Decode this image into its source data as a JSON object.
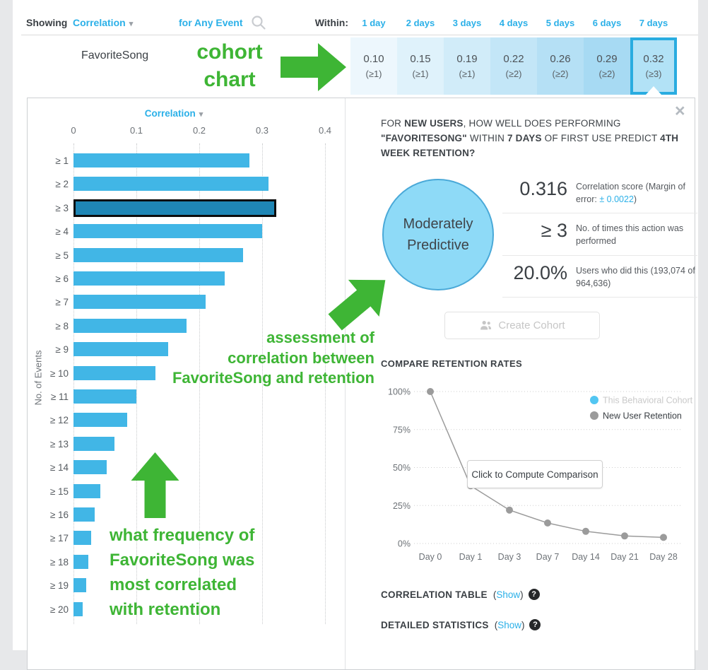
{
  "colors": {
    "accent_blue": "#2bb0e8",
    "bar_blue": "#41b6e6",
    "bar_highlight": "#1f86b5",
    "annotation_green": "#3eb535",
    "cohort_dot_blue": "#52c6f2",
    "retention_gray": "#9b9b9b",
    "selected_cell_border": "#29ace0",
    "bubble_fill": "#8edaf7",
    "bubble_border": "#4aa9d8",
    "cell_shades": [
      "#edf7fd",
      "#dff2fb",
      "#d1ecf9",
      "#c3e6f7",
      "#b5e0f5",
      "#a7daf3",
      "#b2e2f6"
    ]
  },
  "header": {
    "showing_label": "Showing",
    "showing_value": "Correlation",
    "caret": "▾",
    "for_event": "for Any Event",
    "within_label": "Within:",
    "day_columns": [
      "1 day",
      "2 days",
      "3 days",
      "4 days",
      "5 days",
      "6 days",
      "7 days"
    ]
  },
  "event_row": {
    "event_name": "FavoriteSong",
    "cells": [
      {
        "value": "0.10",
        "threshold": "(≥1)",
        "selected": false
      },
      {
        "value": "0.15",
        "threshold": "(≥1)",
        "selected": false
      },
      {
        "value": "0.19",
        "threshold": "(≥1)",
        "selected": false
      },
      {
        "value": "0.22",
        "threshold": "(≥2)",
        "selected": false
      },
      {
        "value": "0.26",
        "threshold": "(≥2)",
        "selected": false
      },
      {
        "value": "0.29",
        "threshold": "(≥2)",
        "selected": false
      },
      {
        "value": "0.32",
        "threshold": "(≥3)",
        "selected": true
      }
    ]
  },
  "annotations": {
    "cohort_chart": [
      "cohort",
      "chart"
    ],
    "assessment": [
      "assessment of",
      "correlation between",
      "FavoriteSong and retention"
    ],
    "frequency": [
      "what frequency of",
      "FavoriteSong was",
      "most correlated",
      "with retention"
    ]
  },
  "detail_panel": {
    "close_icon": "×",
    "question_segments": [
      {
        "text": "FOR ",
        "bold": false
      },
      {
        "text": "NEW USERS",
        "bold": true
      },
      {
        "text": ", HOW WELL DOES PERFORMING ",
        "bold": false
      },
      {
        "text": "\"FAVORITESONG\"",
        "bold": true
      },
      {
        "text": " WITHIN ",
        "bold": false
      },
      {
        "text": "7 DAYS",
        "bold": true
      },
      {
        "text": " OF FIRST USE PREDICT ",
        "bold": false
      },
      {
        "text": "4TH WEEK RETENTION?",
        "bold": true
      }
    ],
    "bubble": [
      "Moderately",
      "Predictive"
    ],
    "stats": [
      {
        "value": "0.316",
        "label_segments": [
          {
            "text": "Correlation score (Margin of error: "
          },
          {
            "text": "± 0.0022",
            "link": true
          },
          {
            "text": ")"
          }
        ]
      },
      {
        "value": "≥ 3",
        "label_segments": [
          {
            "text": "No. of times this action was performed"
          }
        ]
      },
      {
        "value": "20.0%",
        "label_segments": [
          {
            "text": "Users who did this (193,074 of 964,636)"
          }
        ]
      }
    ],
    "create_cohort_label": "Create Cohort",
    "compare_heading": "COMPARE RETENTION RATES",
    "compute_button": "Click to Compute Comparison",
    "links": [
      {
        "title": "CORRELATION TABLE",
        "open": "(",
        "action": "Show",
        "close": ")",
        "help": "?"
      },
      {
        "title": "DETAILED STATISTICS",
        "open": "(",
        "action": "Show",
        "close": ")",
        "help": "?"
      }
    ]
  },
  "chart_data": [
    {
      "type": "bar",
      "orientation": "horizontal",
      "title": "Correlation",
      "xlabel": "Correlation",
      "ylabel": "No. of Events",
      "categories": [
        "≥ 1",
        "≥ 2",
        "≥ 3",
        "≥ 4",
        "≥ 5",
        "≥ 6",
        "≥ 7",
        "≥ 8",
        "≥ 9",
        "≥ 10",
        "≥ 11",
        "≥ 12",
        "≥ 13",
        "≥ 14",
        "≥ 15",
        "≥ 16",
        "≥ 17",
        "≥ 18",
        "≥ 19",
        "≥ 20"
      ],
      "values": [
        0.28,
        0.31,
        0.316,
        0.3,
        0.27,
        0.24,
        0.21,
        0.18,
        0.15,
        0.13,
        0.1,
        0.085,
        0.065,
        0.053,
        0.043,
        0.034,
        0.028,
        0.024,
        0.02,
        0.015
      ],
      "highlight_index": 2,
      "xlim": [
        0,
        0.4
      ],
      "xticks": [
        "0",
        "0.1",
        "0.2",
        "0.3",
        "0.4"
      ],
      "grid": "vertical-dotted",
      "bar_color": "#41b6e6",
      "highlight_color": "#1f86b5"
    },
    {
      "type": "line",
      "title": "COMPARE RETENTION RATES",
      "categories": [
        "Day 0",
        "Day 1",
        "Day 3",
        "Day 7",
        "Day 14",
        "Day 21",
        "Day 28"
      ],
      "series": [
        {
          "name": "This Behavioral Cohort",
          "color": "#52c6f2",
          "values": null,
          "status": "not-computed"
        },
        {
          "name": "New User Retention",
          "color": "#9b9b9b",
          "values": [
            100,
            38,
            22,
            13.5,
            8,
            5,
            4
          ]
        }
      ],
      "yticks": [
        "0%",
        "25%",
        "50%",
        "75%",
        "100%"
      ],
      "ylim": [
        0,
        100
      ],
      "grid": "horizontal-dotted",
      "legend_position": "top-right"
    }
  ]
}
